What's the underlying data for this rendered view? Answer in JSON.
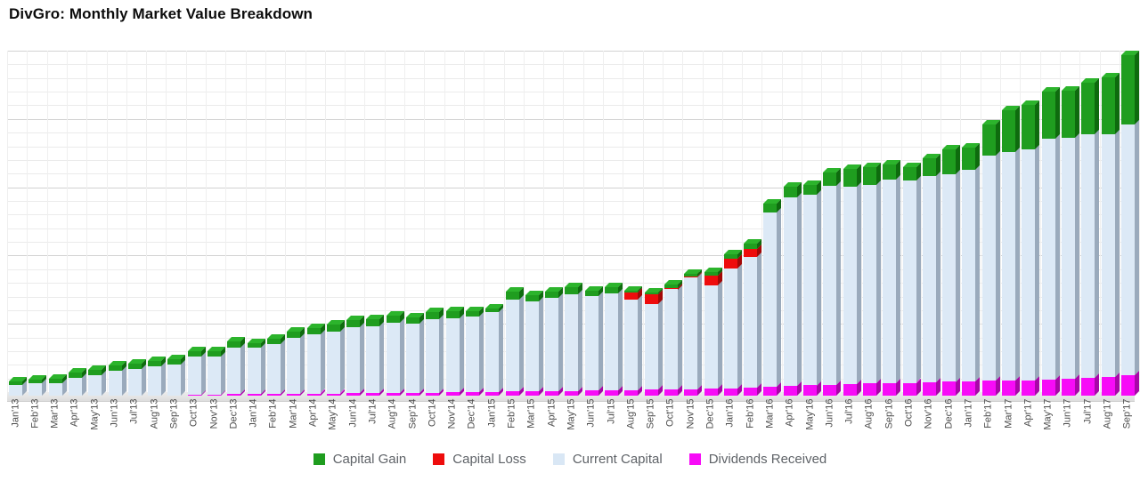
{
  "title": "DivGro: Monthly Market Value Breakdown",
  "legend": [
    {
      "label": "Capital Gain",
      "color": "#1f9d1f"
    },
    {
      "label": "Capital Loss",
      "color": "#ee0c0c"
    },
    {
      "label": "Current Capital",
      "color": "#d9e7f5"
    },
    {
      "label": "Dividends Received",
      "color": "#f70bf7"
    }
  ],
  "chart_data": {
    "type": "bar",
    "stacked": true,
    "style": "3d-column",
    "title": "DivGro: Monthly Market Value Breakdown",
    "xlabel": "",
    "ylabel": "",
    "y_axis_labels_visible": false,
    "units": "percent of plot height (y axis is unlabeled in the image)",
    "ylim": [
      0,
      100
    ],
    "grid": {
      "minor_lines": 26,
      "major_every": 5,
      "vertical_lines_per_month": true
    },
    "legend_position": "bottom",
    "categories": [
      "Jan'13",
      "Feb'13",
      "Mar'13",
      "Apr'13",
      "May'13",
      "Jun'13",
      "Jul'13",
      "Aug'13",
      "Sep'13",
      "Oct'13",
      "Nov'13",
      "Dec'13",
      "Jan'14",
      "Feb'14",
      "Mar'14",
      "Apr'14",
      "May'14",
      "Jun'14",
      "Jul'14",
      "Aug'14",
      "Sep'14",
      "Oct'14",
      "Nov'14",
      "Dec'14",
      "Jan'15",
      "Feb'15",
      "Mar'15",
      "Apr'15",
      "May'15",
      "Jun'15",
      "Jul'15",
      "Aug'15",
      "Sep'15",
      "Oct'15",
      "Nov'15",
      "Dec'15",
      "Jan'16",
      "Feb'16",
      "Mar'16",
      "Apr'16",
      "May'16",
      "Jun'16",
      "Jul'16",
      "Aug'16",
      "Sep'16",
      "Oct'16",
      "Nov'16",
      "Dec'16",
      "Jan'17",
      "Feb'17",
      "Mar'17",
      "Apr'17",
      "May'17",
      "Jun'17",
      "Jul'17",
      "Aug'17",
      "Sep'17"
    ],
    "series": [
      {
        "name": "Dividends Received",
        "colors": {
          "front": "#f70bf7",
          "top": "#fa3cfa",
          "side": "#a707a7"
        },
        "values": [
          0,
          0,
          0,
          0,
          0,
          0,
          0,
          0,
          0,
          0.3,
          0.3,
          0.4,
          0.5,
          0.5,
          0.5,
          0.6,
          0.6,
          0.8,
          0.8,
          0.8,
          0.9,
          0.9,
          1.0,
          1.0,
          1.1,
          1.2,
          1.3,
          1.3,
          1.4,
          1.5,
          1.5,
          1.5,
          1.7,
          1.8,
          1.9,
          2.0,
          2.1,
          2.4,
          2.6,
          2.8,
          3.0,
          3.1,
          3.4,
          3.5,
          3.6,
          3.7,
          3.9,
          4.0,
          4.1,
          4.3,
          4.4,
          4.5,
          4.6,
          4.9,
          5.2,
          5.4,
          5.9
        ]
      },
      {
        "name": "Current Capital",
        "colors": {
          "front": "#dce9f6",
          "top": "#c4d6ea",
          "side": "#9aaabc"
        },
        "values": [
          3.1,
          3.6,
          3.6,
          5.2,
          5.9,
          7.2,
          7.7,
          8.5,
          9.0,
          11.1,
          11.1,
          13.5,
          13.4,
          14.4,
          16.2,
          17.1,
          17.9,
          19.1,
          19.3,
          20.4,
          20.0,
          21.3,
          21.4,
          21.9,
          23.1,
          26.6,
          26.0,
          27.1,
          28.0,
          27.4,
          28.1,
          26.3,
          24.8,
          29.0,
          32.4,
          30.0,
          34.7,
          37.8,
          50.5,
          54.6,
          55.3,
          57.7,
          57.2,
          57.6,
          59.0,
          58.6,
          59.8,
          60.2,
          61.3,
          65.3,
          66.2,
          66.9,
          69.8,
          69.8,
          70.6,
          70.4,
          72.7
        ]
      },
      {
        "name": "Capital Loss",
        "colors": {
          "front": "#ee0c0c",
          "top": "#f54040",
          "side": "#a30707"
        },
        "values": [
          0,
          0,
          0,
          0,
          0,
          0,
          0,
          0,
          0,
          0,
          0,
          0,
          0,
          0,
          0,
          0,
          0,
          0,
          0,
          0,
          0,
          0,
          0,
          0,
          0,
          0,
          0,
          0,
          0,
          0,
          0,
          2.1,
          2.8,
          0.4,
          0.3,
          2.8,
          2.8,
          2.3,
          0,
          0,
          0,
          0,
          0,
          0,
          0,
          0,
          0,
          0,
          0,
          0,
          0,
          0,
          0,
          0,
          0,
          0,
          0
        ]
      },
      {
        "name": "Capital Gain",
        "colors": {
          "front": "#1f9d1f",
          "top": "#2cb42c",
          "side": "#0e6b0e"
        },
        "values": [
          1.0,
          1.0,
          1.3,
          1.5,
          1.5,
          1.5,
          1.5,
          1.5,
          1.5,
          1.5,
          1.5,
          1.8,
          1.3,
          1.5,
          1.8,
          1.8,
          2.1,
          2.1,
          2.1,
          2.1,
          1.8,
          2.1,
          2.1,
          1.5,
          1.0,
          2.3,
          1.8,
          1.8,
          2.1,
          1.5,
          1.8,
          0.5,
          0.5,
          1.0,
          0.8,
          1.0,
          1.3,
          1.5,
          2.6,
          3.1,
          2.8,
          3.9,
          5.2,
          5.2,
          4.4,
          3.9,
          5.2,
          7.2,
          6.4,
          9.0,
          12.1,
          12.9,
          13.7,
          13.7,
          14.9,
          16.5,
          20.1
        ]
      }
    ]
  }
}
